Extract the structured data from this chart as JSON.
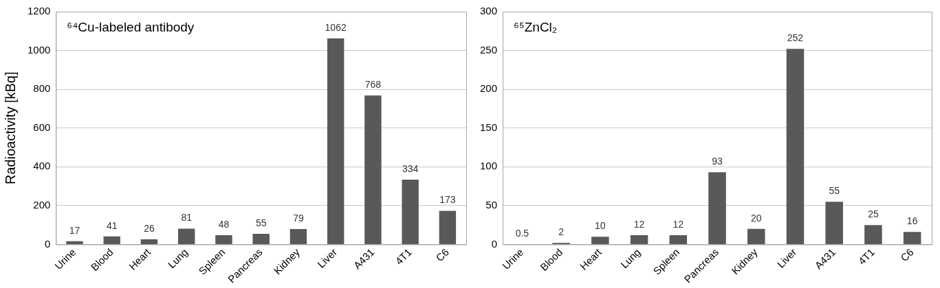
{
  "chart_data": [
    {
      "type": "bar",
      "title": "⁶⁴Cu-labeled antibody",
      "ylabel": "Radioactivity [kBq]",
      "categories": [
        "Urine",
        "Blood",
        "Heart",
        "Lung",
        "Spleen",
        "Pancreas",
        "Kidney",
        "Liver",
        "A431",
        "4T1",
        "C6"
      ],
      "values": [
        17,
        41,
        26,
        81,
        48,
        55,
        79,
        1062,
        768,
        334,
        173
      ],
      "color": "#595959",
      "ylim": [
        0,
        1200
      ],
      "yticks": [
        0,
        200,
        400,
        600,
        800,
        1000,
        1200
      ],
      "grid": "y",
      "data_labels": true,
      "legend": false
    },
    {
      "type": "bar",
      "title": "⁶⁵ZnCl₂",
      "categories": [
        "Urine",
        "Blood",
        "Heart",
        "Lung",
        "Spleen",
        "Pancreas",
        "Kidney",
        "Liver",
        "A431",
        "4T1",
        "C6"
      ],
      "values": [
        0.5,
        2,
        10,
        12,
        12,
        93,
        20,
        252,
        55,
        25,
        16
      ],
      "color": "#595959",
      "ylim": [
        0,
        300
      ],
      "yticks": [
        0,
        50,
        100,
        150,
        200,
        250,
        300
      ],
      "grid": "y",
      "data_labels": true,
      "legend": false
    }
  ]
}
